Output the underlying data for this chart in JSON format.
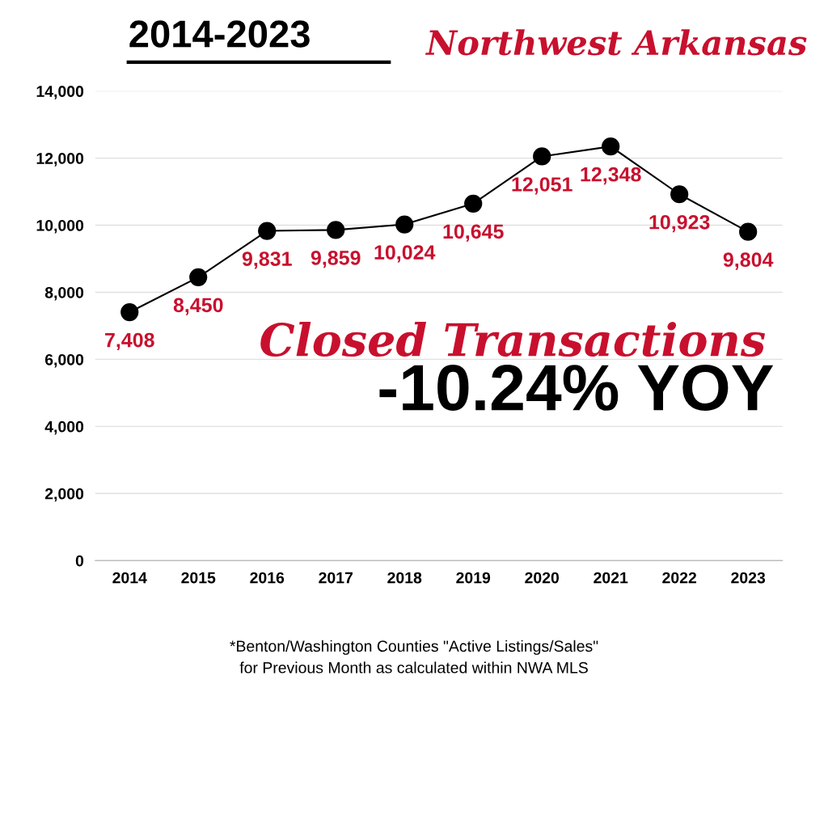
{
  "chart_data": {
    "type": "line",
    "title": "2014-2023",
    "subtitle": "Northwest Arkansas",
    "categories": [
      "2014",
      "2015",
      "2016",
      "2017",
      "2018",
      "2019",
      "2020",
      "2021",
      "2022",
      "2023"
    ],
    "series": [
      {
        "color": "#000000",
        "values": [
          7408,
          8450,
          9831,
          9859,
          10024,
          10645,
          12051,
          12348,
          10923,
          9804
        ],
        "value_labels": [
          "7,408",
          "8,450",
          "9,831",
          "9,859",
          "10,024",
          "10,645",
          "12,051",
          "12,348",
          "10,923",
          "9,804"
        ]
      }
    ],
    "ylim": [
      0,
      14000
    ],
    "yticks": [
      0,
      {
        "value": 2000,
        "label": "2,000"
      },
      {
        "value": 4000,
        "label": "4,000"
      },
      {
        "value": 6000,
        "label": "6,000"
      },
      {
        "value": 8000,
        "label": "8,000"
      },
      {
        "value": 10000,
        "label": "10,000"
      },
      {
        "value": 12000,
        "label": "12,000"
      },
      {
        "value": 14000,
        "label": "14,000"
      }
    ],
    "grid": "y",
    "marker": "circle",
    "line_style": "solid",
    "annotations": [
      "Closed Transactions",
      "-10.24% YOY",
      "*Benton/Washington Counties \"Active Listings/Sales\"\nfor Previous Month as calculated within NWA MLS"
    ]
  }
}
